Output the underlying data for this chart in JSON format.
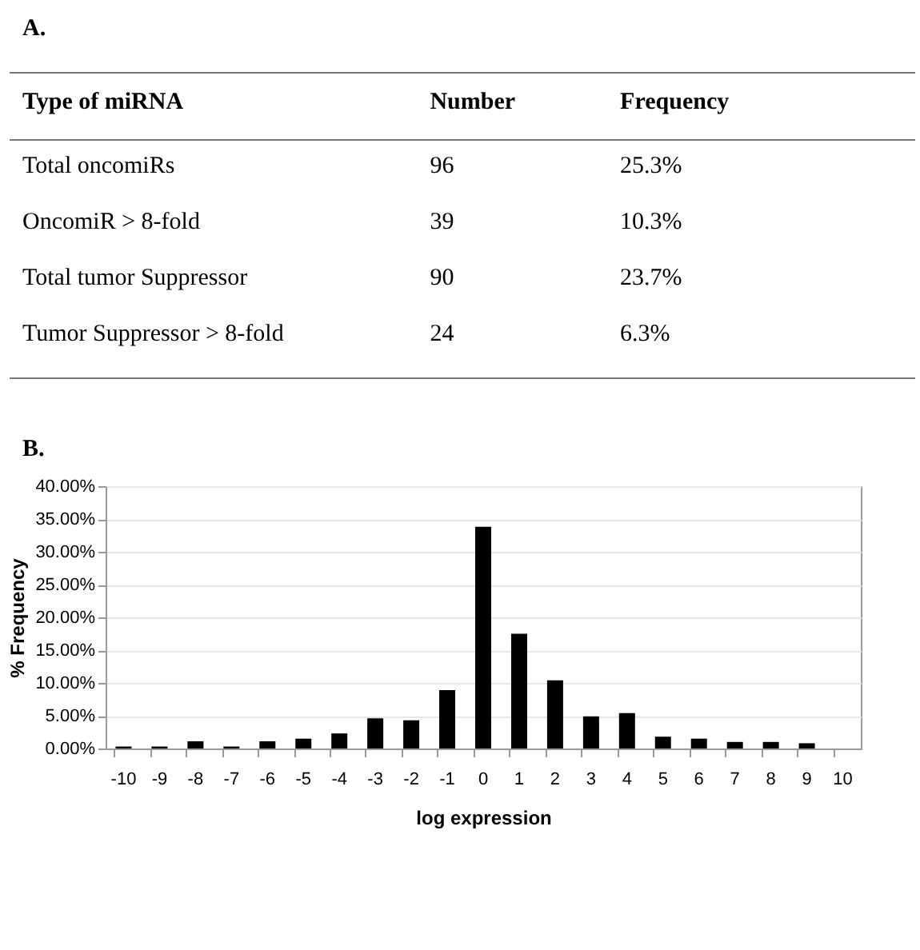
{
  "chart_data": [
    {
      "type": "other",
      "title": "A.",
      "annotations": [
        "Type of miRNA",
        "Number",
        "Frequency",
        "Total oncomiRs",
        "96",
        "25.3%",
        "OncomiR > 8-fold",
        "39",
        "10.3%",
        "Total tumor Suppressor",
        "90",
        "23.7%",
        "Tumor Suppressor > 8-fold",
        "24",
        "6.3%"
      ]
    },
    {
      "type": "bar",
      "title": "B.",
      "xlabel": "log expression",
      "ylabel": "% Frequency",
      "color": "#000000",
      "categories": [
        "-10",
        "-9",
        "-8",
        "-7",
        "-6",
        "-5",
        "-4",
        "-3",
        "-2",
        "-1",
        "0",
        "1",
        "2",
        "3",
        "4",
        "5",
        "6",
        "7",
        "8",
        "9",
        "10"
      ],
      "values": [
        0.3,
        0.3,
        1.1,
        0.3,
        1.1,
        1.5,
        2.3,
        4.6,
        4.3,
        8.9,
        33.8,
        17.5,
        10.4,
        4.9,
        5.4,
        1.8,
        1.5,
        1.0,
        1.0,
        0.8,
        0
      ],
      "ylim": [
        0,
        40
      ],
      "yticks": [
        {
          "value": 0,
          "label": "0.00%"
        },
        {
          "value": 5,
          "label": "5.00%"
        },
        {
          "value": 10,
          "label": "10.00%"
        },
        {
          "value": 15,
          "label": "15.00%"
        },
        {
          "value": 20,
          "label": "20.00%"
        },
        {
          "value": 25,
          "label": "25.00%"
        },
        {
          "value": 30,
          "label": "30.00%"
        },
        {
          "value": 35,
          "label": "35.00%"
        },
        {
          "value": 40,
          "label": "40.00%"
        }
      ],
      "grid": "y"
    }
  ]
}
